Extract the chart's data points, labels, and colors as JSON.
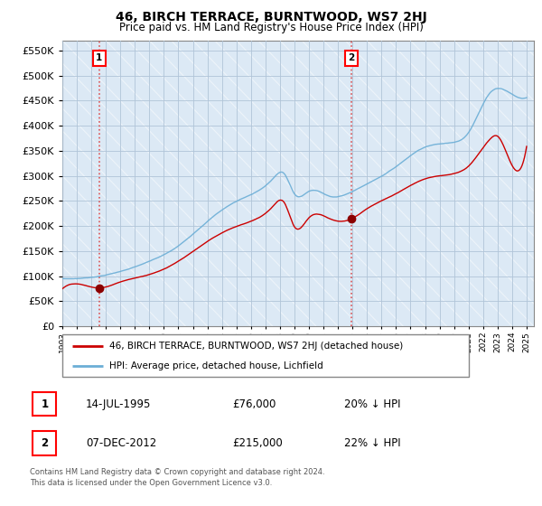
{
  "title": "46, BIRCH TERRACE, BURNTWOOD, WS7 2HJ",
  "subtitle": "Price paid vs. HM Land Registry's House Price Index (HPI)",
  "legend_line1": "46, BIRCH TERRACE, BURNTWOOD, WS7 2HJ (detached house)",
  "legend_line2": "HPI: Average price, detached house, Lichfield",
  "annotation1_label": "1",
  "annotation1_date": "14-JUL-1995",
  "annotation1_price": "£76,000",
  "annotation1_hpi": "20% ↓ HPI",
  "annotation1_year": 1995.54,
  "annotation1_value": 76000,
  "annotation2_label": "2",
  "annotation2_date": "07-DEC-2012",
  "annotation2_price": "£215,000",
  "annotation2_hpi": "22% ↓ HPI",
  "annotation2_year": 2012.93,
  "annotation2_value": 215000,
  "hpi_color": "#6baed6",
  "price_color": "#cc0000",
  "dot_color": "#8b0000",
  "dashed_line_color": "#dd4444",
  "ylim": [
    0,
    570000
  ],
  "yticks": [
    0,
    50000,
    100000,
    150000,
    200000,
    250000,
    300000,
    350000,
    400000,
    450000,
    500000,
    550000
  ],
  "footer": "Contains HM Land Registry data © Crown copyright and database right 2024.\nThis data is licensed under the Open Government Licence v3.0.",
  "background_color": "#dce9f5",
  "grid_color": "#b0c4d8",
  "hatch_color": "#c8dced"
}
